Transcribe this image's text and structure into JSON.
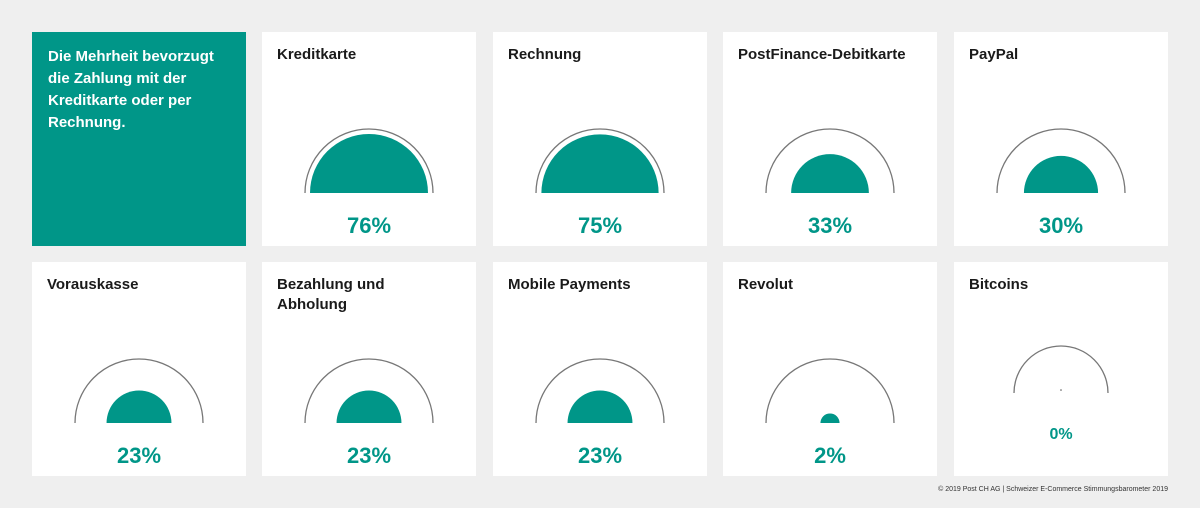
{
  "intro_text": "Die Mehrheit bevorzugt die Zahlung mit der Kreditkarte oder per Rechnung.",
  "colors": {
    "accent": "#009688",
    "arc": "#777777",
    "card": "#ffffff",
    "background": "#efefef"
  },
  "chart_data": {
    "type": "gauge",
    "unit": "%",
    "ylim": [
      0,
      100
    ],
    "categories": [
      "Kreditkarte",
      "Rechnung",
      "PostFinance-Debitkarte",
      "PayPal",
      "Vorauskasse",
      "Bezahlung und Abholung",
      "Mobile Payments",
      "Revolut",
      "Bitcoins"
    ],
    "values": [
      76,
      75,
      33,
      30,
      23,
      23,
      23,
      2,
      0
    ],
    "labels": [
      "76%",
      "75%",
      "33%",
      "30%",
      "23%",
      "23%",
      "23%",
      "2%",
      "0%"
    ]
  },
  "footer": "© 2019 Post CH AG | Schweizer E-Commerce Stimmungsbarometer 2019"
}
